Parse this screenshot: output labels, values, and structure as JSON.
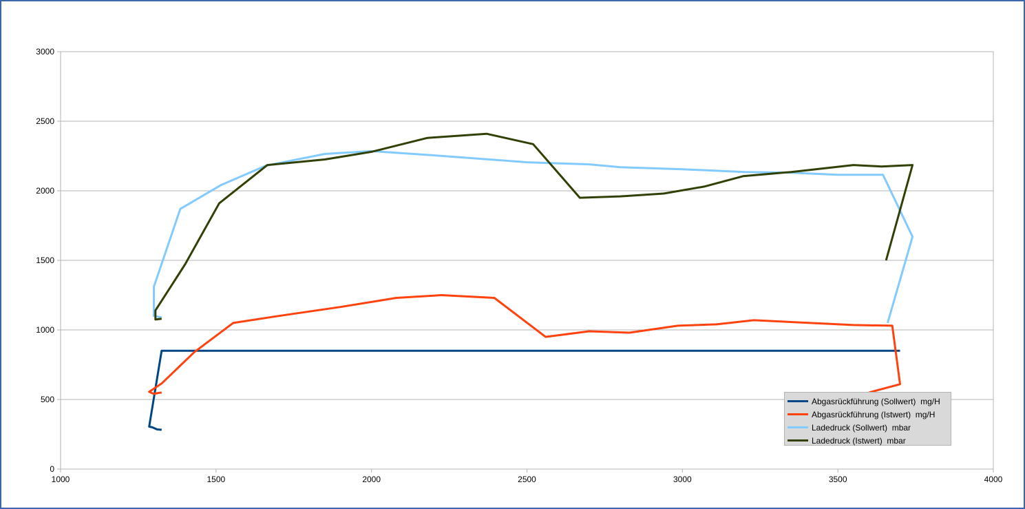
{
  "chart_data": {
    "type": "line",
    "title": "",
    "xlabel": "",
    "ylabel": "",
    "xlim": [
      1000,
      4000
    ],
    "ylim": [
      0,
      3000
    ],
    "x_ticks": [
      "1000",
      "1500",
      "2000",
      "2500",
      "3000",
      "3500",
      "4000"
    ],
    "y_ticks": [
      "0",
      "500",
      "1000",
      "1500",
      "2000",
      "2500",
      "3000"
    ],
    "grid": "horizontal",
    "legend_position": "bottom-right",
    "series": [
      {
        "name": "Abgasrückführung (Sollwert)  mg/H",
        "color": "#004586",
        "points": [
          [
            1325,
            282
          ],
          [
            1310,
            285
          ],
          [
            1305,
            290
          ],
          [
            1295,
            300
          ],
          [
            1285,
            305
          ],
          [
            1325,
            850
          ],
          [
            1700,
            850
          ],
          [
            2500,
            850
          ],
          [
            3000,
            850
          ],
          [
            3500,
            850
          ],
          [
            3700,
            850
          ]
        ]
      },
      {
        "name": "Abgasrückführung (Istwert)  mg/H",
        "color": "#ff420e",
        "points": [
          [
            1325,
            550
          ],
          [
            1310,
            545
          ],
          [
            1300,
            540
          ],
          [
            1285,
            555
          ],
          [
            1325,
            615
          ],
          [
            1430,
            840
          ],
          [
            1555,
            1050
          ],
          [
            1700,
            1100
          ],
          [
            1900,
            1165
          ],
          [
            2080,
            1230
          ],
          [
            2225,
            1250
          ],
          [
            2395,
            1230
          ],
          [
            2560,
            950
          ],
          [
            2700,
            990
          ],
          [
            2830,
            980
          ],
          [
            2985,
            1030
          ],
          [
            3110,
            1040
          ],
          [
            3230,
            1070
          ],
          [
            3550,
            1035
          ],
          [
            3675,
            1030
          ],
          [
            3700,
            610
          ],
          [
            3600,
            550
          ]
        ]
      },
      {
        "name": "Ladedruck (Sollwert)  mbar",
        "color": "#83caff",
        "points": [
          [
            1325,
            1090
          ],
          [
            1300,
            1100
          ],
          [
            1300,
            1310
          ],
          [
            1385,
            1870
          ],
          [
            1515,
            2040
          ],
          [
            1660,
            2180
          ],
          [
            1850,
            2265
          ],
          [
            2000,
            2285
          ],
          [
            2200,
            2255
          ],
          [
            2500,
            2205
          ],
          [
            2700,
            2190
          ],
          [
            2800,
            2170
          ],
          [
            3000,
            2155
          ],
          [
            3200,
            2135
          ],
          [
            3350,
            2130
          ],
          [
            3500,
            2115
          ],
          [
            3645,
            2115
          ],
          [
            3740,
            1670
          ],
          [
            3660,
            1050
          ]
        ]
      },
      {
        "name": "Ladedruck (Istwert)  mbar",
        "color": "#314004",
        "points": [
          [
            1325,
            1080
          ],
          [
            1305,
            1075
          ],
          [
            1305,
            1140
          ],
          [
            1400,
            1470
          ],
          [
            1510,
            1910
          ],
          [
            1665,
            2185
          ],
          [
            1850,
            2225
          ],
          [
            2000,
            2280
          ],
          [
            2180,
            2380
          ],
          [
            2370,
            2410
          ],
          [
            2520,
            2335
          ],
          [
            2670,
            1950
          ],
          [
            2800,
            1960
          ],
          [
            2940,
            1980
          ],
          [
            3070,
            2030
          ],
          [
            3195,
            2105
          ],
          [
            3350,
            2135
          ],
          [
            3550,
            2185
          ],
          [
            3640,
            2175
          ],
          [
            3740,
            2185
          ],
          [
            3655,
            1500
          ]
        ]
      }
    ]
  }
}
